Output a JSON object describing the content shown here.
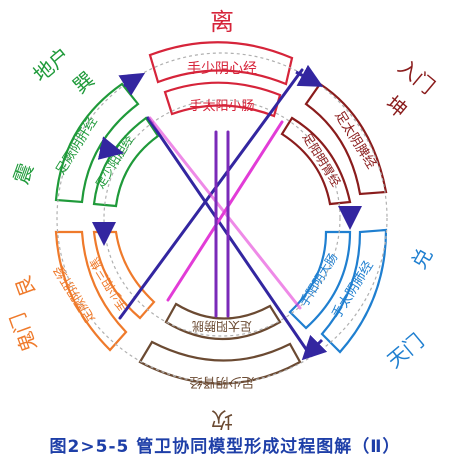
{
  "caption": "图2>5-5  管卫协同模型形成过程图解（Ⅱ）",
  "outer_labels": {
    "top": "离",
    "upper_right_1": "入门",
    "upper_right_2": "坤",
    "right_1": "兑",
    "right_2": "天门",
    "bottom": "坎",
    "left_1": "鬼门",
    "left_2": "艮",
    "upper_left_1": "地户",
    "upper_left_2": "巽",
    "left_mid": "震"
  },
  "outer_ring": {
    "top": "手少阴心经",
    "upper_right": "足太阴脾经",
    "lower_right": "手太阴肺经",
    "bottom": "足少阴肾经",
    "lower_left": "足厥阴肝经",
    "upper_left": "足厥阴肝经"
  },
  "inner_ring": {
    "top": "手太阳小肠",
    "upper_right": "足阳明胃经",
    "lower_right": "手阳明大肠",
    "bottom": "足太阳膀胱",
    "lower_left": "手少阳三焦",
    "upper_left": "足少阳胆经"
  },
  "colors": {
    "top": "#d6243a",
    "upper_right": "#8a1c1c",
    "right": "#1f7fd0",
    "bottom": "#6b4a32",
    "left": "#ef7a2b",
    "upper_left": "#1f9a3a",
    "blue_arrow": "#3326a0",
    "magenta": "#e23cd7",
    "purple": "#7a2ab8",
    "caption": "#1e3fa8"
  }
}
